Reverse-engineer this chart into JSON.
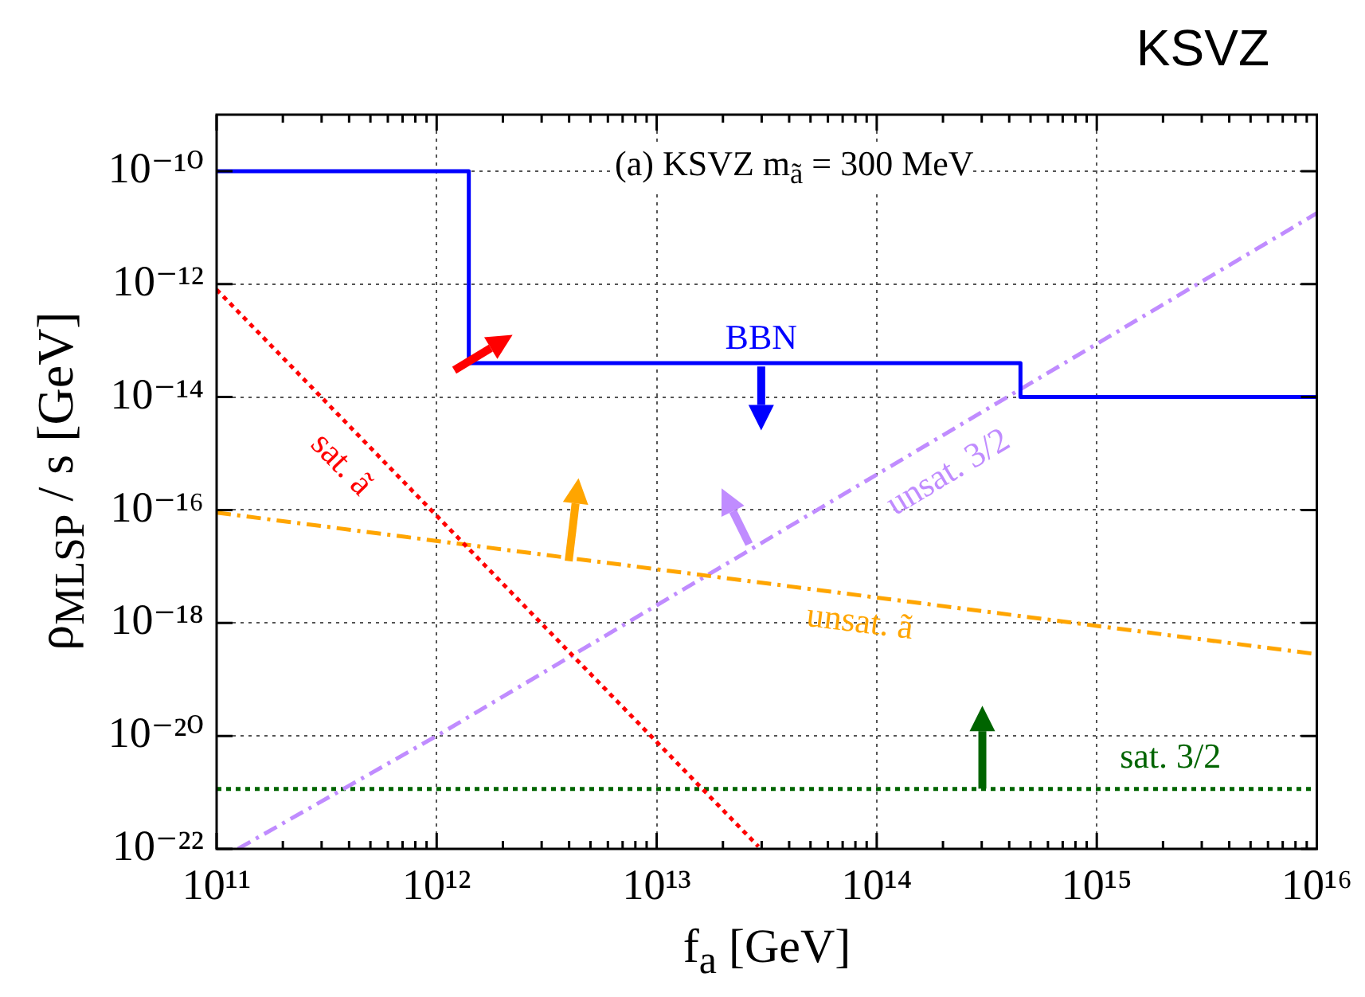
{
  "chart_data": {
    "type": "line",
    "title": "KSVZ",
    "xlabel": "f$_{a}$ [GeV]",
    "ylabel": "ρ$_{MLSP}$ / s [GeV]",
    "annotations": [
      "(a) KSVZ m$_{ã}$ = 300 MeV"
    ],
    "log": "xy",
    "grid": true,
    "legend": false,
    "xlim": [
      100000000000.0,
      1e+16
    ],
    "ylim": [
      1e-22,
      1e-09
    ],
    "xticks": [
      {
        "value": 100000000000.0,
        "label": "10¹¹"
      },
      {
        "value": 200000000000.0,
        "label": null
      },
      {
        "value": 300000000000.0,
        "label": null
      },
      {
        "value": 400000000000.0,
        "label": null
      },
      {
        "value": 500000000000.0,
        "label": null
      },
      {
        "value": 600000000000.0,
        "label": null
      },
      {
        "value": 700000000000.0,
        "label": null
      },
      {
        "value": 800000000000.0,
        "label": null
      },
      {
        "value": 900000000000.0,
        "label": null
      },
      {
        "value": 1000000000000.0,
        "label": "10¹²"
      },
      {
        "value": 2000000000000.0,
        "label": null
      },
      {
        "value": 3000000000000.0,
        "label": null
      },
      {
        "value": 4000000000000.0,
        "label": null
      },
      {
        "value": 5000000000000.0,
        "label": null
      },
      {
        "value": 6000000000000.0,
        "label": null
      },
      {
        "value": 7000000000000.0,
        "label": null
      },
      {
        "value": 8000000000000.0,
        "label": null
      },
      {
        "value": 9000000000000.0,
        "label": null
      },
      {
        "value": 10000000000000.0,
        "label": "10¹³"
      },
      {
        "value": 20000000000000.0,
        "label": null
      },
      {
        "value": 30000000000000.0,
        "label": null
      },
      {
        "value": 40000000000000.0,
        "label": null
      },
      {
        "value": 50000000000000.0,
        "label": null
      },
      {
        "value": 60000000000000.0,
        "label": null
      },
      {
        "value": 70000000000000.0,
        "label": null
      },
      {
        "value": 80000000000000.0,
        "label": null
      },
      {
        "value": 90000000000000.0,
        "label": null
      },
      {
        "value": 100000000000000.0,
        "label": "10¹⁴"
      },
      {
        "value": 200000000000000.0,
        "label": null
      },
      {
        "value": 300000000000000.0,
        "label": null
      },
      {
        "value": 400000000000000.0,
        "label": null
      },
      {
        "value": 500000000000000.0,
        "label": null
      },
      {
        "value": 600000000000000.0,
        "label": null
      },
      {
        "value": 700000000000000.0,
        "label": null
      },
      {
        "value": 800000000000000.0,
        "label": null
      },
      {
        "value": 900000000000000.0,
        "label": null
      },
      {
        "value": 1000000000000000.0,
        "label": "10¹⁵"
      },
      {
        "value": 2000000000000000.0,
        "label": null
      },
      {
        "value": 3000000000000000.0,
        "label": null
      },
      {
        "value": 4000000000000000.0,
        "label": null
      },
      {
        "value": 5000000000000000.0,
        "label": null
      },
      {
        "value": 6000000000000000.0,
        "label": null
      },
      {
        "value": 7000000000000000.0,
        "label": null
      },
      {
        "value": 8000000000000000.0,
        "label": null
      },
      {
        "value": 9000000000000000.0,
        "label": null
      },
      {
        "value": 1e+16,
        "label": "10¹⁶"
      }
    ],
    "yticks": [
      {
        "value": 1e-22,
        "label": "10⁻²²"
      },
      {
        "value": 1e-20,
        "label": "10⁻²⁰"
      },
      {
        "value": 1e-18,
        "label": "10⁻¹⁸"
      },
      {
        "value": 1e-16,
        "label": "10⁻¹⁶"
      },
      {
        "value": 1e-14,
        "label": "10⁻¹⁴"
      },
      {
        "value": 1e-12,
        "label": "10⁻¹²"
      },
      {
        "value": 1e-10,
        "label": "10⁻¹⁰"
      }
    ],
    "series": [
      {
        "name": "BBN",
        "type": "step",
        "color": "#0000ff",
        "line_style": "solid",
        "x": [
          100000000000.0,
          1400000000000.0,
          450000000000000.0,
          1e+16
        ],
        "values": [
          1e-10,
          4e-14,
          1e-14,
          1e-14
        ]
      },
      {
        "name": "sat. ã",
        "type": "line",
        "color": "#ff0000",
        "line_style": "dotted",
        "x": [
          100000000000.0,
          29000000000000.0
        ],
        "values": [
          8e-13,
          1.1e-22
        ]
      },
      {
        "name": "unsat. ã",
        "type": "line",
        "color": "#ffa500",
        "line_style": "dashed",
        "x": [
          100000000000.0,
          1e+16
        ],
        "values": [
          9e-17,
          2.8e-19
        ]
      },
      {
        "name": "unsat. 3/2",
        "type": "line",
        "color": "#c08cff",
        "line_style": "dashed",
        "x": [
          125000000000.0,
          1000000000000.0,
          1e+16
        ],
        "values": [
          1e-22,
          1e-20,
          1.8e-11
        ]
      },
      {
        "name": "sat. 3/2",
        "type": "line",
        "color": "#006400",
        "line_style": "dotted",
        "x": [
          100000000000.0,
          1e+16
        ],
        "values": [
          1.15e-21,
          1.15e-21
        ]
      }
    ]
  }
}
